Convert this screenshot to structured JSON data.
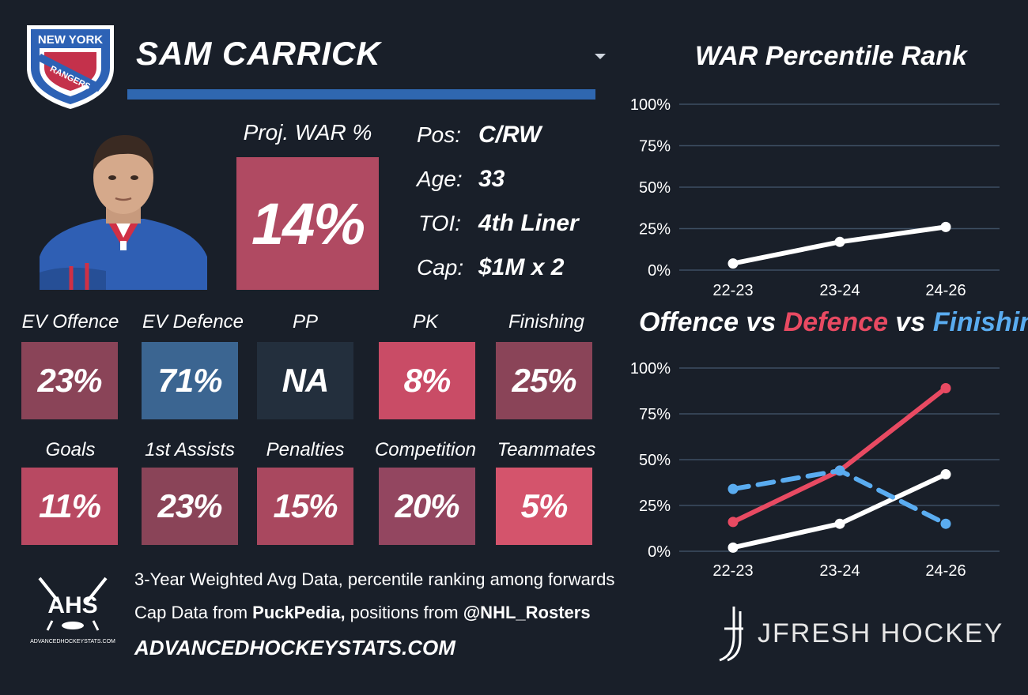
{
  "header": {
    "player_name": "SAM CARRICK",
    "team_logo_text_top": "NEW YORK",
    "team_logo_text_bottom": "RANGERS"
  },
  "proj_war": {
    "label": "Proj. WAR %",
    "value": "14%",
    "color": "#b04a62"
  },
  "info": [
    {
      "label": "Pos:",
      "value": "C/RW"
    },
    {
      "label": "Age:",
      "value": "33"
    },
    {
      "label": "TOI:",
      "value": "4th Liner"
    },
    {
      "label": "Cap:",
      "value": "$1M x 2"
    }
  ],
  "stats_row1": [
    {
      "label": "EV Offence",
      "value": "23%",
      "color": "#8a4458"
    },
    {
      "label": "EV Defence",
      "value": "71%",
      "color": "#3b6591"
    },
    {
      "label": "PP",
      "value": "NA",
      "color": "#232f3d"
    },
    {
      "label": "PK",
      "value": "8%",
      "color": "#c94c66"
    },
    {
      "label": "Finishing",
      "value": "25%",
      "color": "#8a4458"
    }
  ],
  "stats_row2": [
    {
      "label": "Goals",
      "value": "11%",
      "color": "#b84962"
    },
    {
      "label": "1st Assists",
      "value": "23%",
      "color": "#8a4458"
    },
    {
      "label": "Penalties",
      "value": "15%",
      "color": "#a9485f"
    },
    {
      "label": "Competition",
      "value": "20%",
      "color": "#934660"
    },
    {
      "label": "Teammates",
      "value": "5%",
      "color": "#d4546c"
    }
  ],
  "footer": {
    "line1": "3-Year Weighted Avg Data, percentile ranking among forwards",
    "line2_prefix": "Cap Data from ",
    "line2_bold1": "PuckPedia,",
    "line2_mid": " positions from ",
    "line2_bold2": "@NHL_Rosters",
    "site": "ADVANCEDHOCKEYSTATS.COM",
    "ahs_logo_text": "AHS",
    "ahs_logo_subtext": "ADVANCEDHOCKEYSTATS.COM",
    "jfresh": "JFRESH HOCKEY"
  },
  "colors": {
    "background": "#191f29",
    "offence": "#ffffff",
    "defence": "#e84a62",
    "finishing": "#5aacf0",
    "grid": "#3e4f63"
  },
  "chart_data": [
    {
      "type": "line",
      "title": "WAR Percentile Rank",
      "categories": [
        "22-23",
        "23-24",
        "24-26"
      ],
      "series": [
        {
          "values": [
            4,
            17,
            26
          ],
          "color": "#ffffff"
        }
      ],
      "yticks": [
        "0%",
        "25%",
        "50%",
        "75%",
        "100%"
      ],
      "ylim": [
        0,
        100
      ]
    },
    {
      "type": "line",
      "title_parts": {
        "offence": "Offence",
        "vs1": " vs ",
        "defence": "Defence",
        "vs2": " vs ",
        "finishing": "Finishing"
      },
      "categories": [
        "22-23",
        "23-24",
        "24-26"
      ],
      "series": [
        {
          "name": "Offence",
          "values": [
            2,
            15,
            42
          ],
          "color": "#ffffff",
          "dashed": false
        },
        {
          "name": "Defence",
          "values": [
            16,
            44,
            89
          ],
          "color": "#e84a62",
          "dashed": false
        },
        {
          "name": "Finishing",
          "values": [
            34,
            44,
            15
          ],
          "color": "#5aacf0",
          "dashed": true
        }
      ],
      "yticks": [
        "0%",
        "25%",
        "50%",
        "75%",
        "100%"
      ],
      "ylim": [
        0,
        100
      ]
    }
  ]
}
